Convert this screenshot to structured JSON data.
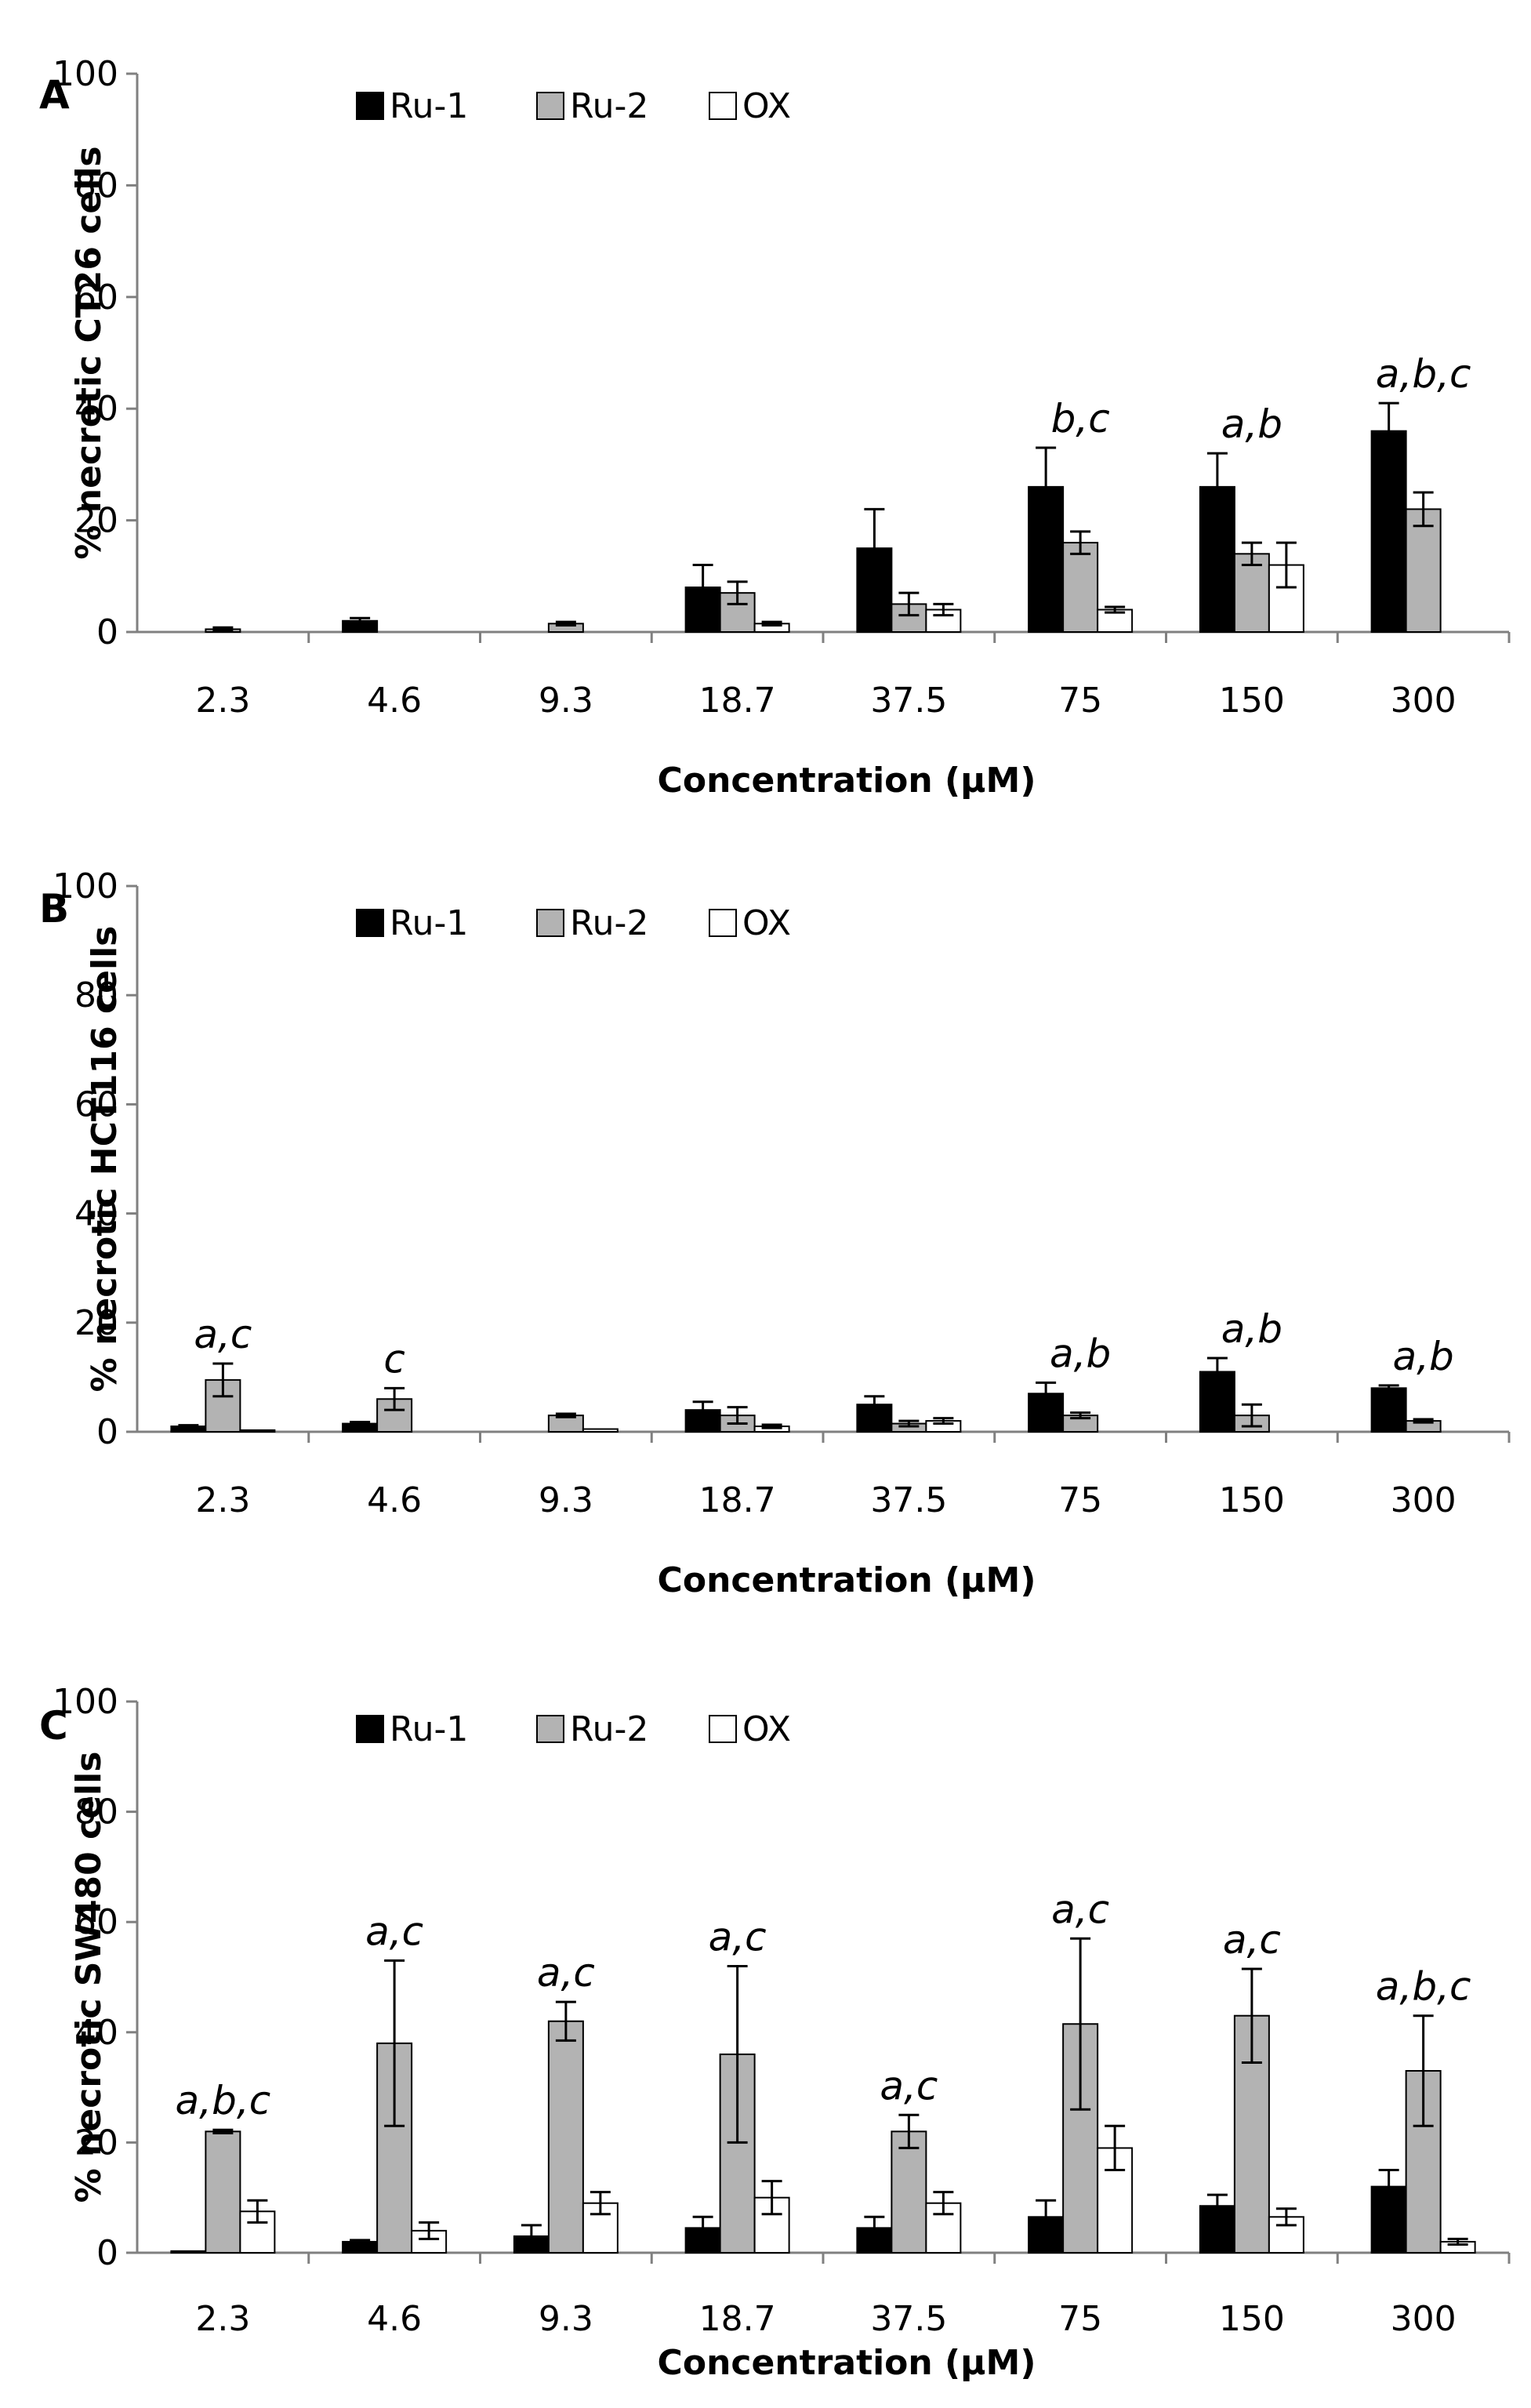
{
  "chart_data": [
    {
      "panel": "A",
      "type": "bar",
      "ylabel": "% necrotic CT26 cells",
      "xlabel": "Concentration (µM)",
      "ylim": [
        0,
        100
      ],
      "yticks": [
        0,
        20,
        40,
        60,
        80,
        100
      ],
      "categories": [
        "2.3",
        "4.6",
        "9.3",
        "18.7",
        "37.5",
        "75",
        "150",
        "300"
      ],
      "series": [
        {
          "name": "Ru-1",
          "values": [
            0,
            2,
            0,
            8,
            15,
            26,
            26,
            36
          ],
          "errors": [
            0,
            0.5,
            0,
            4,
            7,
            7,
            6,
            5
          ]
        },
        {
          "name": "Ru-2",
          "values": [
            0.5,
            0,
            1.5,
            7,
            5,
            16,
            14,
            22
          ],
          "errors": [
            0.3,
            0,
            0.3,
            2,
            2,
            2,
            2,
            3
          ]
        },
        {
          "name": "OX",
          "values": [
            0,
            0,
            0,
            1.5,
            4,
            4,
            12,
            0
          ],
          "errors": [
            0,
            0,
            0,
            0.3,
            1,
            0.5,
            4,
            0
          ]
        }
      ],
      "annotations": [
        "",
        "",
        "",
        "",
        "",
        "b,c",
        "a,b",
        "a,b,c"
      ]
    },
    {
      "panel": "B",
      "type": "bar",
      "ylabel": "% necrotic HCT116 cells",
      "xlabel": "Concentration (µM)",
      "ylim": [
        0,
        100
      ],
      "yticks": [
        0,
        20,
        40,
        60,
        80,
        100
      ],
      "categories": [
        "2.3",
        "4.6",
        "9.3",
        "18.7",
        "37.5",
        "75",
        "150",
        "300"
      ],
      "series": [
        {
          "name": "Ru-1",
          "values": [
            1,
            1.5,
            0,
            4,
            5,
            7,
            11,
            8
          ],
          "errors": [
            0.2,
            0.3,
            0,
            1.5,
            1.5,
            2,
            2.5,
            0.5
          ]
        },
        {
          "name": "Ru-2",
          "values": [
            9.5,
            6,
            3,
            3,
            1.5,
            3,
            3,
            2
          ],
          "errors": [
            3,
            2,
            0.3,
            1.5,
            0.5,
            0.5,
            2,
            0.3
          ]
        },
        {
          "name": "OX",
          "values": [
            0.3,
            0,
            0.5,
            1,
            2,
            0,
            0,
            0
          ],
          "errors": [
            0,
            0,
            0,
            0.3,
            0.5,
            0,
            0,
            0
          ]
        }
      ],
      "annotations": [
        "a,c",
        "c",
        "",
        "",
        "",
        "a,b",
        "a,b",
        "a,b"
      ]
    },
    {
      "panel": "C",
      "type": "bar",
      "ylabel": "% necrotic SW480 cells",
      "xlabel": "Concentration (µM)",
      "ylim": [
        0,
        100
      ],
      "yticks": [
        0,
        20,
        40,
        60,
        80,
        100
      ],
      "categories": [
        "2.3",
        "4.6",
        "9.3",
        "18.7",
        "37.5",
        "75",
        "150",
        "300"
      ],
      "series": [
        {
          "name": "Ru-1",
          "values": [
            0.3,
            2,
            3,
            4.5,
            4.5,
            6.5,
            8.5,
            12
          ],
          "errors": [
            0,
            0.3,
            2,
            2,
            2,
            3,
            2,
            3
          ]
        },
        {
          "name": "Ru-2",
          "values": [
            22,
            38,
            42,
            36,
            22,
            41.5,
            43,
            33
          ],
          "errors": [
            0.3,
            15,
            3.5,
            16,
            3,
            15.5,
            8.5,
            10
          ]
        },
        {
          "name": "OX",
          "values": [
            7.5,
            4,
            9,
            10,
            9,
            19,
            6.5,
            2
          ],
          "errors": [
            2,
            1.5,
            2,
            3,
            2,
            4,
            1.5,
            0.5
          ]
        }
      ],
      "annotations": [
        "a,b,c",
        "a,c",
        "a,c",
        "a,c",
        "a,c",
        "a,c",
        "a,c",
        "a,b,c"
      ]
    }
  ],
  "colors": {
    "Ru-1": "#000000",
    "Ru-2": "#b3b3b3",
    "OX": "#ffffff",
    "axis": "#808080"
  }
}
